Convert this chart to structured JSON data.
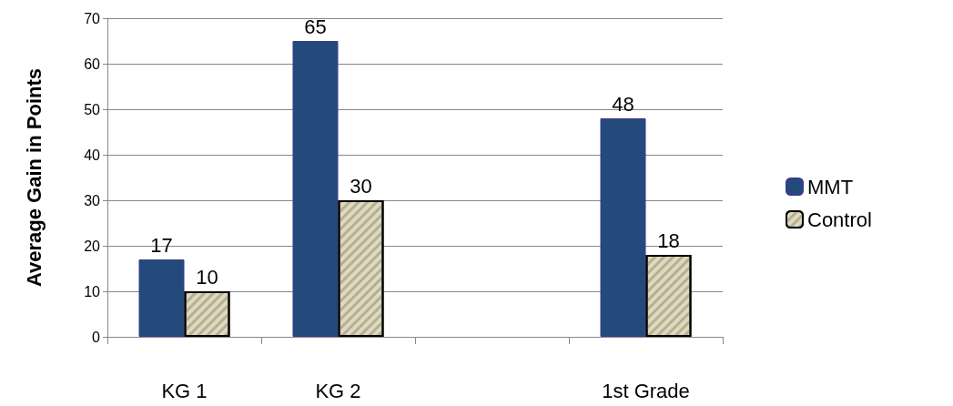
{
  "chart_data": {
    "type": "bar",
    "ylabel": "Average Gain in Points",
    "categories": [
      "KG 1",
      "KG 2",
      null,
      "1st Grade"
    ],
    "series": [
      {
        "name": "MMT",
        "color": "#244a7c",
        "values": [
          17,
          65,
          null,
          48
        ]
      },
      {
        "name": "Control",
        "color": "#ddd9c3",
        "values": [
          10,
          30,
          null,
          18
        ]
      }
    ],
    "ylim": [
      0,
      70
    ],
    "yticks": [
      0,
      10,
      20,
      30,
      40,
      50,
      60,
      70
    ],
    "grid": "y",
    "legend": "right",
    "data_labels": true
  }
}
